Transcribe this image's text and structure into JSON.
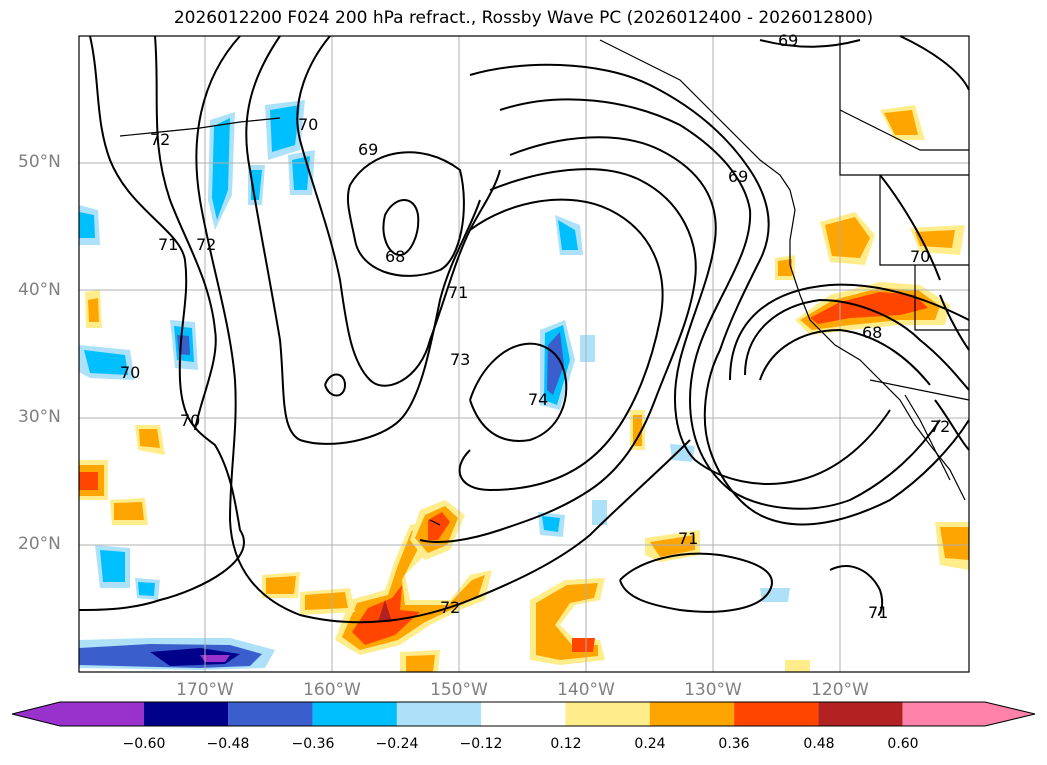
{
  "title": "2026012200 F024 200 hPa refract., Rossby Wave PC (2026012400 - 2026012800)",
  "map": {
    "lat_labels": [
      "50°N",
      "40°N",
      "30°N",
      "20°N"
    ],
    "lon_labels": [
      "170°W",
      "160°W",
      "150°W",
      "140°W",
      "130°W",
      "120°W"
    ],
    "contour_labels": [
      "72",
      "70",
      "69",
      "71",
      "72",
      "68",
      "71",
      "73",
      "74",
      "69",
      "70",
      "68",
      "72",
      "70",
      "70",
      "71",
      "72",
      "71",
      "69"
    ],
    "grid": true,
    "coastlines": true
  },
  "colorbar": {
    "ticks": [
      "−0.60",
      "−0.48",
      "−0.36",
      "−0.24",
      "−0.12",
      "0.12",
      "0.24",
      "0.36",
      "0.48",
      "0.60"
    ],
    "colors": [
      "#9932CC",
      "#00008B",
      "#3A5FCD",
      "#00BFFF",
      "#ADE1FA",
      "#FFFFFF",
      "#FFEC8B",
      "#FFA500",
      "#FF4500",
      "#B22222",
      "#FF82AB"
    ],
    "extend": "both"
  }
}
